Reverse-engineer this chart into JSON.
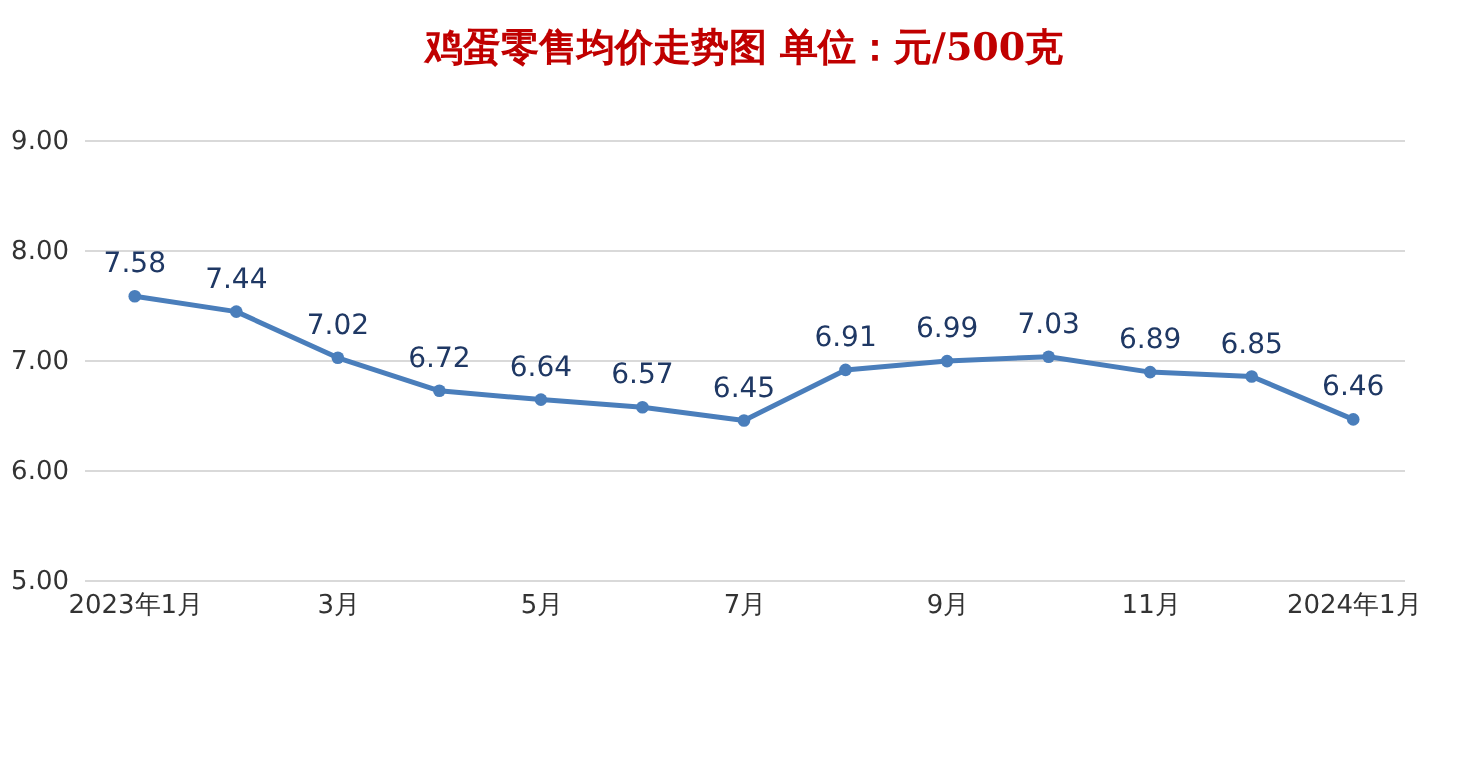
{
  "chart_data": {
    "type": "line",
    "title": "鸡蛋零售均价走势图    单位：元/500克",
    "categories": [
      "2023年1月",
      null,
      "3月",
      null,
      "5月",
      null,
      "7月",
      null,
      "9月",
      null,
      "11月",
      null,
      "2024年1月"
    ],
    "series": [
      {
        "color": "#4a7ebb",
        "values": [
          7.58,
          7.44,
          7.02,
          6.72,
          6.64,
          6.57,
          6.45,
          6.91,
          6.99,
          7.03,
          6.89,
          6.85,
          6.46
        ]
      }
    ],
    "ylim": [
      5,
      9
    ],
    "yticks": [
      {
        "value": 5,
        "label": "5.00"
      },
      {
        "value": 6,
        "label": "6.00"
      },
      {
        "value": 7,
        "label": "7.00"
      },
      {
        "value": 8,
        "label": "8.00"
      },
      {
        "value": 9,
        "label": "9.00"
      }
    ],
    "grid": "y",
    "marker": "circle",
    "line_style": "solid",
    "data_labels": true
  }
}
